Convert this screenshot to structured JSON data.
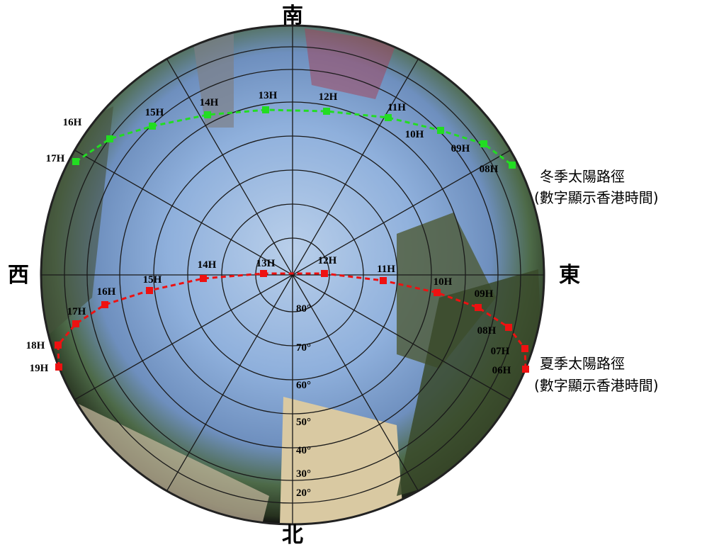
{
  "directions": {
    "south": "南",
    "north": "北",
    "west": "西",
    "east": "東"
  },
  "winter_path": {
    "legend_title": "冬季太陽路徑",
    "legend_note": "(數字顯示香港時間)",
    "hours": [
      "17H",
      "16H",
      "15H",
      "14H",
      "13H",
      "12H",
      "11H",
      "10H",
      "09H",
      "08H"
    ]
  },
  "summer_path": {
    "legend_title": "夏季太陽路徑",
    "legend_note": "(數字顯示香港時間)",
    "hours": [
      "19H",
      "18H",
      "17H",
      "16H",
      "15H",
      "14H",
      "13H",
      "12H",
      "11H",
      "10H",
      "09H",
      "08H",
      "07H",
      "06H"
    ]
  },
  "altitude_labels": [
    "80°",
    "70°",
    "60°",
    "50°",
    "40°",
    "30°",
    "20°"
  ]
}
